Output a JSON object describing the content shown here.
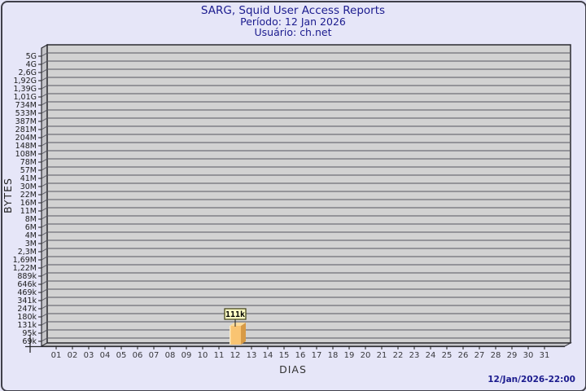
{
  "header": {
    "title": "SARG, Squid User Access Reports",
    "period": "Período: 12 Jan 2026",
    "user": "Usuário: ch.net"
  },
  "footer": {
    "timestamp": "12/Jan/2026-22:00"
  },
  "colors": {
    "background": "#e6e6f8",
    "frame_border": "#40404a",
    "title_text": "#1b1b8e",
    "plot_face": "#d2d2d2",
    "plot_wall": "#c4c4c8",
    "gridline": "#565660",
    "plot_edge": "#2b2b30",
    "axis_text": "#38383c",
    "bar_front": "#f9c472",
    "bar_side": "#d79a46",
    "bar_top": "#fbdc9e",
    "bar_highlight": "#fdebc4",
    "value_box_fill": "#ffffc6",
    "value_box_border": "#3d3d10",
    "value_text": "#000000"
  },
  "chart_data": {
    "type": "bar",
    "title": "SARG, Squid User Access Reports",
    "subtitle_period": "Período: 12 Jan 2026",
    "subtitle_user": "Usuário: ch.net",
    "xlabel": "DIAS",
    "ylabel": "BYTES",
    "y_scale": "log",
    "grid": true,
    "x_categories": [
      "01",
      "02",
      "03",
      "04",
      "05",
      "06",
      "07",
      "08",
      "09",
      "10",
      "11",
      "12",
      "13",
      "14",
      "15",
      "16",
      "17",
      "18",
      "19",
      "20",
      "21",
      "22",
      "23",
      "24",
      "25",
      "26",
      "27",
      "28",
      "29",
      "30",
      "31"
    ],
    "y_tick_labels": [
      "5G",
      "4G",
      "2,6G",
      "1,92G",
      "1,39G",
      "1,01G",
      "734M",
      "533M",
      "387M",
      "281M",
      "204M",
      "148M",
      "108M",
      "78M",
      "57M",
      "41M",
      "30M",
      "22M",
      "16M",
      "11M",
      "8M",
      "6M",
      "4M",
      "3M",
      "2,3M",
      "1,69M",
      "1,22M",
      "889k",
      "646k",
      "469k",
      "341k",
      "247k",
      "180k",
      "131k",
      "95k",
      "69k"
    ],
    "bars": [
      {
        "category": "12",
        "value_bytes": 111000,
        "value_label": "111k"
      }
    ],
    "generated_at": "12/Jan/2026-22:00"
  }
}
